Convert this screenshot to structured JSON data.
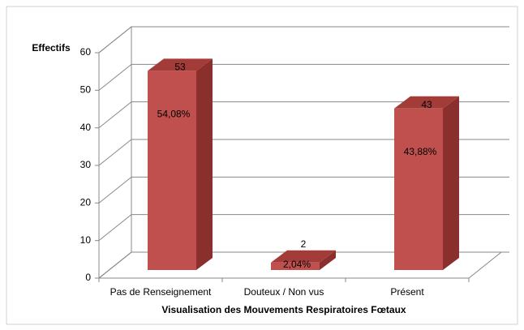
{
  "chart_data": {
    "type": "bar3d",
    "y_axis_label": "Effectifs",
    "x_axis_label": "Visualisation des Mouvements Respiratoires Fœtaux",
    "categories": [
      "Pas de Renseignement",
      "Douteux / Non vus",
      "Présent"
    ],
    "values": [
      53,
      2,
      43
    ],
    "percent_labels": [
      "54,08%",
      "2,04%",
      "43,88%"
    ],
    "color": "#c0504d",
    "ylim": [
      0,
      60
    ],
    "yticks": [
      0,
      10,
      20,
      30,
      40,
      50,
      60
    ],
    "grid": true
  }
}
